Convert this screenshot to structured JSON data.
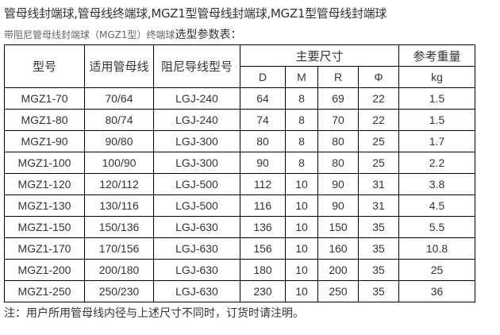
{
  "title": "管母线封端球,管母线终端球,MGZ1型管母线封端球,MGZ1型管母线封端球",
  "subtitle_small": "带阻尼管母线封端球（MGZ1型）终端球",
  "subtitle_main": "选型参数表：",
  "table": {
    "headers": {
      "model": "型号",
      "tube": "适用管母线",
      "wire": "阻尼导线型号",
      "dims": "主要尺寸",
      "weight": "参考重量",
      "D": "D",
      "M": "M",
      "R": "R",
      "phi": "Φ",
      "kg": "kg"
    },
    "rows": [
      [
        "MGZ1-70",
        "70/64",
        "LGJ-240",
        "64",
        "8",
        "69",
        "22",
        "1.5"
      ],
      [
        "MGZ1-80",
        "80/74",
        "LGJ-240",
        "74",
        "8",
        "70",
        "22",
        "1.5"
      ],
      [
        "MGZ1-90",
        "90/80",
        "LGJ-300",
        "80",
        "8",
        "80",
        "25",
        "1.7"
      ],
      [
        "MGZ1-100",
        "100/90",
        "LGJ-300",
        "90",
        "8",
        "80",
        "25",
        "2.2"
      ],
      [
        "MGZ1-120",
        "120/112",
        "LGJ-500",
        "112",
        "10",
        "90",
        "31",
        "3.8"
      ],
      [
        "MGZ1-130",
        "130/116",
        "LGJ-500",
        "116",
        "10",
        "90",
        "31",
        "4.5"
      ],
      [
        "MGZ1-150",
        "150/136",
        "LGJ-630",
        "136",
        "10",
        "150",
        "35",
        "5.5"
      ],
      [
        "MGZ1-170",
        "170/156",
        "LGJ-630",
        "156",
        "10",
        "160",
        "35",
        "10.8"
      ],
      [
        "MGZ1-200",
        "200/180",
        "LGJ-630",
        "180",
        "10",
        "200",
        "35",
        "25"
      ],
      [
        "MGZ1-250",
        "250/230",
        "LGJ-630",
        "230",
        "10",
        "250",
        "35",
        "36"
      ]
    ]
  },
  "note": "注：用户所用管母线内径与上述尺寸不同时，订货时请注明。"
}
